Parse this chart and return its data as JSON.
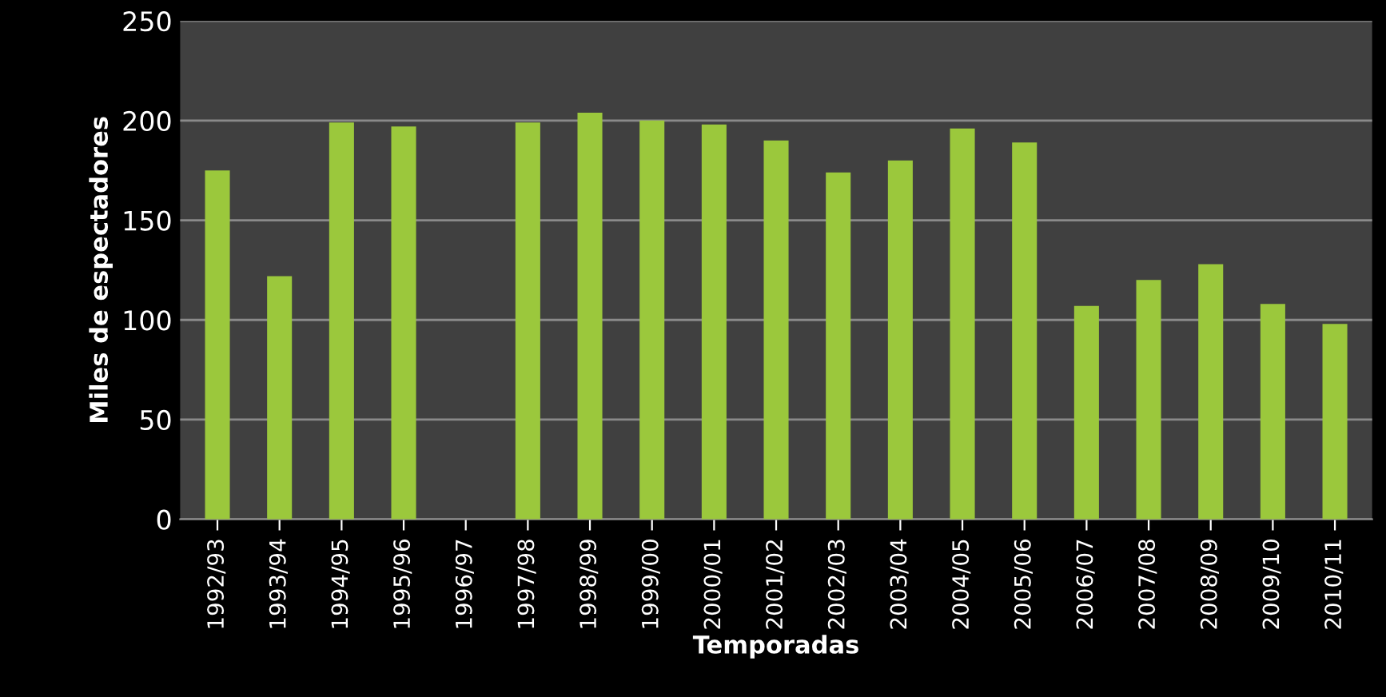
{
  "chart_data": {
    "type": "bar",
    "xlabel": "Temporadas",
    "ylabel": "Miles de espectadores",
    "categories": [
      "1992/93",
      "1993/94",
      "1994/95",
      "1995/96",
      "1996/97",
      "1997/98",
      "1998/99",
      "1999/00",
      "2000/01",
      "2001/02",
      "2002/03",
      "2003/04",
      "2004/05",
      "2005/06",
      "2006/07",
      "2007/08",
      "2008/09",
      "2009/10",
      "2010/11"
    ],
    "values": [
      175,
      122,
      199,
      197,
      null,
      199,
      204,
      200,
      198,
      190,
      174,
      180,
      196,
      189,
      107,
      120,
      128,
      108,
      98
    ],
    "color": "#9bc83c",
    "ylim": [
      0,
      250
    ],
    "yticks": [
      0,
      50,
      100,
      150,
      200,
      250
    ],
    "grid": "y"
  }
}
